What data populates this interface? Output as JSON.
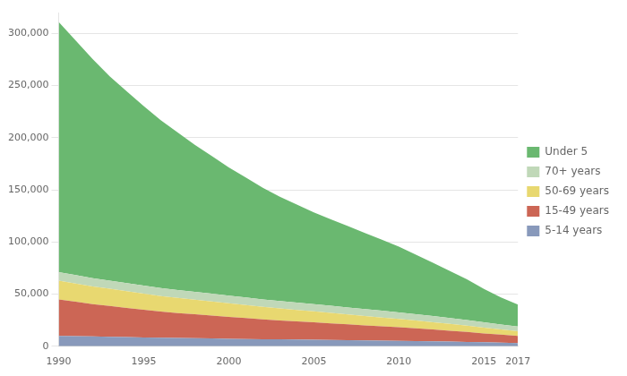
{
  "chart_data": {
    "type": "area",
    "stacked": true,
    "x": [
      1990,
      1991,
      1992,
      1993,
      1994,
      1995,
      1996,
      1997,
      1998,
      1999,
      2000,
      2001,
      2002,
      2003,
      2004,
      2005,
      2006,
      2007,
      2008,
      2009,
      2010,
      2011,
      2012,
      2013,
      2014,
      2015,
      2016,
      2017
    ],
    "series": [
      {
        "name": "5-14 years",
        "color": "#8899bb",
        "values": [
          10000,
          9700,
          9400,
          9100,
          8800,
          8500,
          8200,
          7900,
          7700,
          7500,
          7200,
          7000,
          6800,
          6600,
          6400,
          6200,
          6000,
          5800,
          5600,
          5400,
          5200,
          5000,
          4800,
          4500,
          4200,
          3800,
          3400,
          3000
        ]
      },
      {
        "name": "15-49 years",
        "color": "#cc6655",
        "values": [
          35000,
          33000,
          31000,
          29500,
          28000,
          26500,
          25000,
          24000,
          23000,
          22000,
          21000,
          20000,
          19000,
          18200,
          17500,
          16800,
          16000,
          15200,
          14500,
          13700,
          13000,
          12200,
          11300,
          10400,
          9500,
          8500,
          7700,
          7000
        ]
      },
      {
        "name": "50-69 years",
        "color": "#e8d870",
        "values": [
          18000,
          17500,
          17000,
          16500,
          16000,
          15500,
          15000,
          14500,
          14000,
          13500,
          13000,
          12500,
          12000,
          11500,
          11000,
          10500,
          10000,
          9500,
          9000,
          8500,
          8000,
          7500,
          7000,
          6500,
          6000,
          5500,
          5000,
          4500
        ]
      },
      {
        "name": "70+ years",
        "color": "#c0d8b8",
        "values": [
          8000,
          8000,
          7900,
          7800,
          7700,
          7700,
          7600,
          7500,
          7500,
          7400,
          7400,
          7300,
          7200,
          7100,
          7000,
          6900,
          6800,
          6700,
          6600,
          6500,
          6300,
          6100,
          5900,
          5700,
          5400,
          5100,
          4800,
          4500
        ]
      },
      {
        "name": "Under 5",
        "color": "#6ab870",
        "values": [
          240000,
          225000,
          210000,
          196000,
          184000,
          172000,
          161000,
          151000,
          141000,
          132000,
          123000,
          115000,
          107000,
          100000,
          94000,
          88000,
          83000,
          78000,
          73000,
          68000,
          63000,
          57000,
          51000,
          45000,
          39000,
          32000,
          26000,
          21000
        ]
      }
    ],
    "xlim": [
      1990,
      2017
    ],
    "xticks": [
      1990,
      1995,
      2000,
      2005,
      2010,
      2015,
      2017
    ],
    "ylim": [
      0,
      320000
    ],
    "yticks": [
      0,
      {
        "value": 50000,
        "label": "50,000"
      },
      {
        "value": 100000,
        "label": "100,000"
      },
      {
        "value": 150000,
        "label": "150,000"
      },
      {
        "value": 200000,
        "label": "200,000"
      },
      {
        "value": 250000,
        "label": "250,000"
      },
      {
        "value": 300000,
        "label": "300,000"
      }
    ],
    "grid": true,
    "legend": "right"
  }
}
